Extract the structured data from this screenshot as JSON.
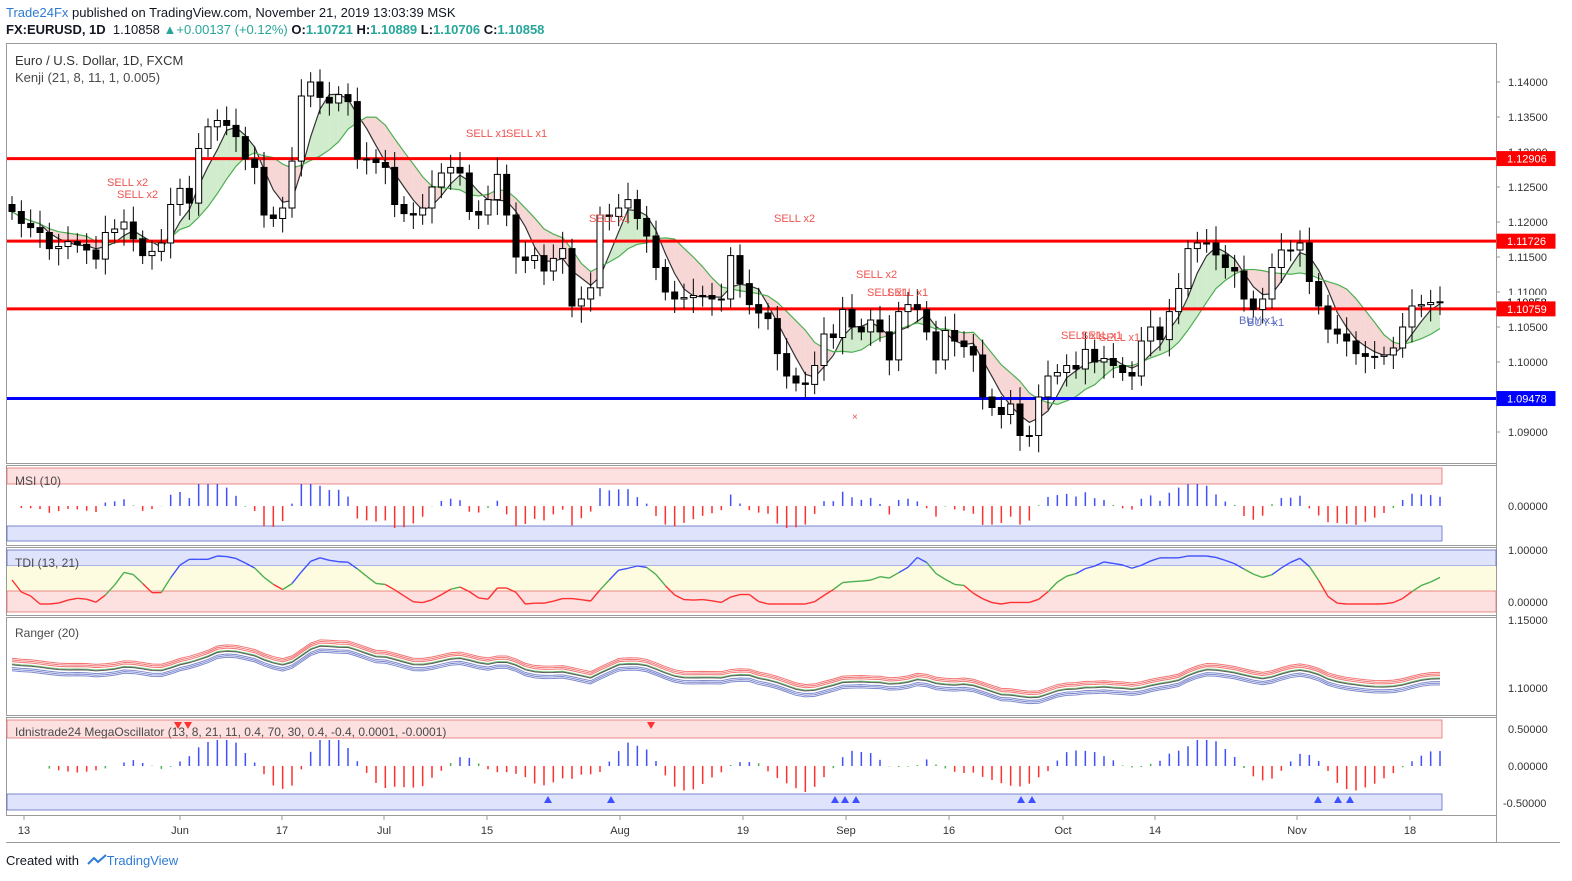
{
  "header": {
    "brand": "Trade24Fx",
    "published": "published on TradingView.com, November 21, 2019 13:03:39 MSK"
  },
  "symbol_line": {
    "symbol": "FX:EURUSD, 1D",
    "price": "1.10858",
    "change": "+0.00137 (+0.12%)",
    "o_label": "O:",
    "o": "1.10721",
    "h_label": "H:",
    "h": "1.10889",
    "l_label": "L:",
    "l": "1.10706",
    "c_label": "C:",
    "c": "1.10858"
  },
  "panes": {
    "main_title": "Euro / U.S. Dollar, 1D, FXCM",
    "kenji": "Kenji (21, 8, 11, 1, 0.005)",
    "msi": "MSI (10)",
    "tdi": "TDI (13, 21)",
    "ranger": "Ranger (20)",
    "mega": "Idnistrade24 MegaOscillator (13, 8, 21, 11, 0.4, 70, 30, 0.4, -0.4, 0.0001, -0.0001)"
  },
  "price_axis": {
    "ticks": [
      "1.14000",
      "1.13500",
      "1.13000",
      "1.12500",
      "1.12000",
      "1.11500",
      "1.11000",
      "1.10500",
      "1.10000",
      "1.09500",
      "1.09000",
      "1.08500"
    ],
    "tags": [
      {
        "label": "1.12906",
        "color": "#ff0000"
      },
      {
        "label": "1.11726",
        "color": "#ff0000"
      },
      {
        "label": "1.10858",
        "color": "#ffffff"
      },
      {
        "label": "1.10759",
        "color": "#ff0000"
      },
      {
        "label": "1.09478",
        "color": "#0000ff"
      }
    ]
  },
  "msi_axis": [
    "0.00000"
  ],
  "tdi_axis": [
    "1.00000",
    "0.00000"
  ],
  "ranger_axis": [
    "1.15000",
    "1.10000"
  ],
  "mega_axis": [
    "0.50000",
    "0.00000",
    "-0.50000"
  ],
  "time_axis": [
    "13",
    "Jun",
    "17",
    "Jul",
    "15",
    "Aug",
    "19",
    "Sep",
    "16",
    "Oct",
    "14",
    "Nov",
    "18"
  ],
  "signals": [
    {
      "text": "SELL x2"
    },
    {
      "text": "SELL x2"
    },
    {
      "text": "SELL x1"
    },
    {
      "text": "SELL x2"
    },
    {
      "text": "SELL x1"
    },
    {
      "text": "SELL x1"
    },
    {
      "text": "SELL x2"
    },
    {
      "text": "SELL x1"
    },
    {
      "text": "SELL x1"
    },
    {
      "text": "SELL x1"
    },
    {
      "text": "SELL x1"
    },
    {
      "text": "SELL x1"
    },
    {
      "text": "BUY x1"
    },
    {
      "text": "BUY x1"
    }
  ],
  "footer": {
    "created": "Created with",
    "brand": "TradingView"
  },
  "colors": {
    "up": "#ffffff",
    "down": "#000000",
    "red_line": "#ff0000",
    "blue_line": "#0000ff",
    "accent": "#2e7bd6"
  }
}
